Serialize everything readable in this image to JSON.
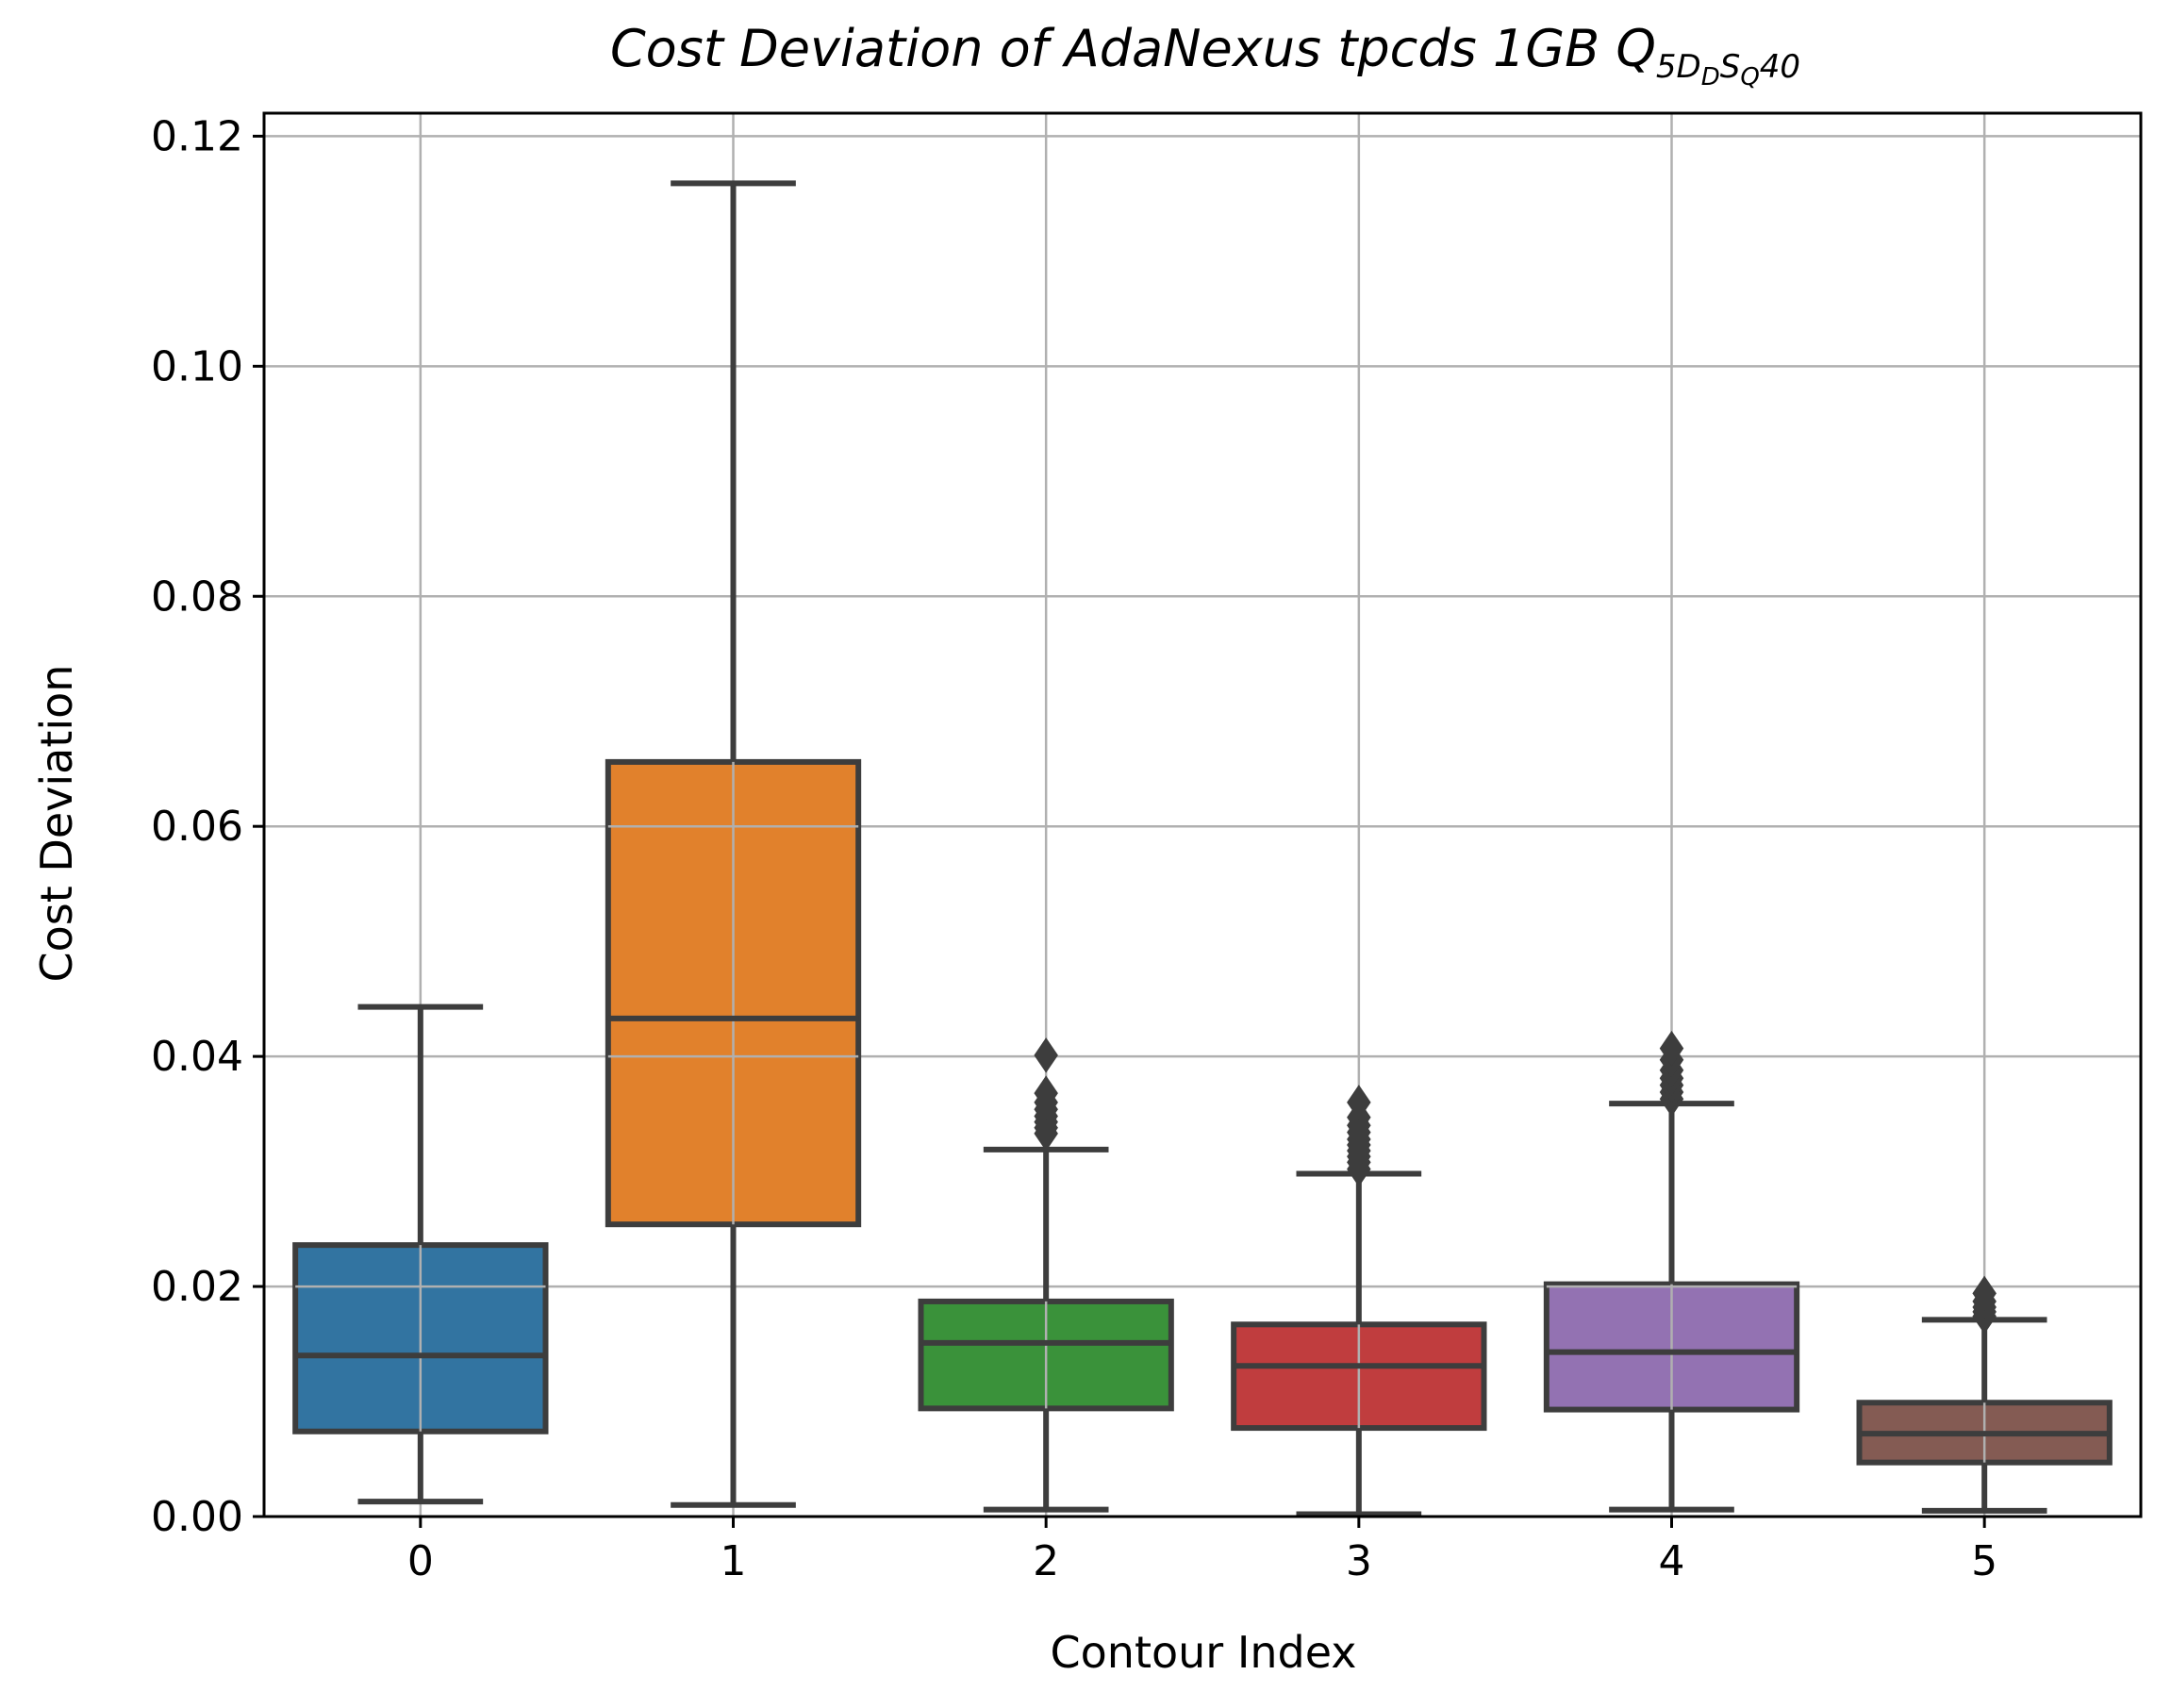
{
  "chart_data": {
    "type": "box",
    "title": {
      "main": "Cost Deviation of AdaNexus tpcds  1GB  ",
      "q_symbol": "Q",
      "q_sub_1": "5",
      "q_sub_2": "D",
      "q_sub_3": "D",
      "q_sub_4": "S",
      "q_sub_5": "Q",
      "q_sub_6": "40"
    },
    "xlabel": "Contour Index",
    "ylabel": "Cost Deviation",
    "ylim": [
      0,
      0.122
    ],
    "yticks": [
      0.0,
      0.02,
      0.04,
      0.06,
      0.08,
      0.1,
      0.12
    ],
    "ytick_labels": [
      "0.00",
      "0.02",
      "0.04",
      "0.06",
      "0.08",
      "0.10",
      "0.12"
    ],
    "categories": [
      "0",
      "1",
      "2",
      "3",
      "4",
      "5"
    ],
    "grid": true,
    "boxes": [
      {
        "category": "0",
        "whisker_low": 0.0013,
        "q1": 0.0074,
        "median": 0.014,
        "q3": 0.0236,
        "whisker_high": 0.0443,
        "color": "#3274a1",
        "outliers": []
      },
      {
        "category": "1",
        "whisker_low": 0.001,
        "q1": 0.0254,
        "median": 0.0433,
        "q3": 0.0656,
        "whisker_high": 0.1159,
        "color": "#e1812c",
        "outliers": []
      },
      {
        "category": "2",
        "whisker_low": 0.0006,
        "q1": 0.0094,
        "median": 0.0151,
        "q3": 0.0187,
        "whisker_high": 0.0319,
        "color": "#3a923a",
        "outliers": [
          0.0333,
          0.0338,
          0.0343,
          0.0348,
          0.0354,
          0.036,
          0.0368,
          0.0401
        ]
      },
      {
        "category": "3",
        "whisker_low": 0.0002,
        "q1": 0.0077,
        "median": 0.0131,
        "q3": 0.0167,
        "whisker_high": 0.0298,
        "color": "#c03d3e",
        "outliers": [
          0.0302,
          0.0308,
          0.0313,
          0.0318,
          0.0323,
          0.0328,
          0.0334,
          0.034,
          0.0347,
          0.036
        ]
      },
      {
        "category": "4",
        "whisker_low": 0.0006,
        "q1": 0.0093,
        "median": 0.0143,
        "q3": 0.0202,
        "whisker_high": 0.0359,
        "color": "#9372b2",
        "outliers": [
          0.0363,
          0.0369,
          0.0375,
          0.0381,
          0.0388,
          0.0397,
          0.0407
        ]
      },
      {
        "category": "5",
        "whisker_low": 0.0005,
        "q1": 0.0047,
        "median": 0.0072,
        "q3": 0.0099,
        "whisker_high": 0.0171,
        "color": "#845b53",
        "outliers": [
          0.0174,
          0.0178,
          0.0182,
          0.0187,
          0.0194
        ]
      }
    ]
  }
}
